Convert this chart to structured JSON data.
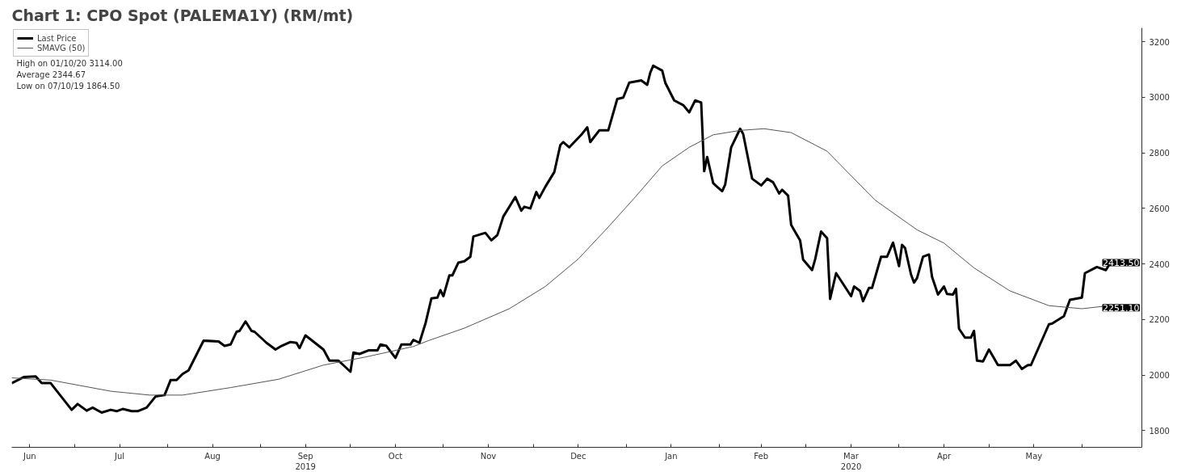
{
  "chart_data": {
    "type": "line",
    "title": "Chart 1: CPO Spot (PALEMA1Y) (RM/mt)",
    "xlim": [
      "2019-06-10",
      "2020-06-21"
    ],
    "ylim": [
      1740,
      3250
    ],
    "yticks": [
      1800,
      2000,
      2200,
      2400,
      2600,
      2800,
      3000,
      3200
    ],
    "xticks": [
      {
        "value": "2019-06-16",
        "label": "Jun"
      },
      {
        "value": "2019-07-01",
        "label": null
      },
      {
        "value": "2019-07-16",
        "label": "Jul"
      },
      {
        "value": "2019-08-01",
        "label": null
      },
      {
        "value": "2019-08-16",
        "label": "Aug"
      },
      {
        "value": "2019-09-01",
        "label": null
      },
      {
        "value": "2019-09-16",
        "label": "Sep\n2019"
      },
      {
        "value": "2019-10-01",
        "label": null
      },
      {
        "value": "2019-10-16",
        "label": "Oct"
      },
      {
        "value": "2019-11-01",
        "label": null
      },
      {
        "value": "2019-11-16",
        "label": "Nov"
      },
      {
        "value": "2019-12-01",
        "label": null
      },
      {
        "value": "2019-12-16",
        "label": "Dec"
      },
      {
        "value": "2020-01-01",
        "label": null
      },
      {
        "value": "2020-01-16",
        "label": "Jan"
      },
      {
        "value": "2020-02-01",
        "label": null
      },
      {
        "value": "2020-02-15",
        "label": "Feb"
      },
      {
        "value": "2020-03-01",
        "label": null
      },
      {
        "value": "2020-03-16",
        "label": "Mar\n2020"
      },
      {
        "value": "2020-04-01",
        "label": null
      },
      {
        "value": "2020-04-16",
        "label": "Apr"
      },
      {
        "value": "2020-05-01",
        "label": null
      },
      {
        "value": "2020-05-16",
        "label": "May"
      },
      {
        "value": "2020-06-01",
        "label": null
      }
    ],
    "grid": false,
    "legend": "top left",
    "line_style": "solid",
    "annotations": [
      "High on 01/10/20 3114.00",
      "Average 2344.67",
      "Low on 07/10/19 1864.50"
    ],
    "series": [
      {
        "name": "Last Price",
        "color": "#000000",
        "x": [
          "2019-06-10",
          "2019-06-14",
          "2019-06-18",
          "2019-06-20",
          "2019-06-23",
          "2019-06-30",
          "2019-07-02",
          "2019-07-05",
          "2019-07-07",
          "2019-07-10",
          "2019-07-13",
          "2019-07-15",
          "2019-07-17",
          "2019-07-20",
          "2019-07-22",
          "2019-07-25",
          "2019-07-28",
          "2019-07-31",
          "2019-08-02",
          "2019-08-04",
          "2019-08-06",
          "2019-08-08",
          "2019-08-13",
          "2019-08-18",
          "2019-08-20",
          "2019-08-22",
          "2019-08-24",
          "2019-08-25",
          "2019-08-27",
          "2019-08-29",
          "2019-08-30",
          "2019-09-03",
          "2019-09-06",
          "2019-09-08",
          "2019-09-11",
          "2019-09-13",
          "2019-09-14",
          "2019-09-16",
          "2019-09-22",
          "2019-09-24",
          "2019-09-27",
          "2019-10-01",
          "2019-10-02",
          "2019-10-04",
          "2019-10-07",
          "2019-10-10",
          "2019-10-11",
          "2019-10-13",
          "2019-10-16",
          "2019-10-18",
          "2019-10-21",
          "2019-10-22",
          "2019-10-24",
          "2019-10-26",
          "2019-10-28",
          "2019-10-30",
          "2019-10-31",
          "2019-11-01",
          "2019-11-03",
          "2019-11-04",
          "2019-11-06",
          "2019-11-08",
          "2019-11-10",
          "2019-11-11",
          "2019-11-15",
          "2019-11-17",
          "2019-11-19",
          "2019-11-21",
          "2019-11-25",
          "2019-11-27",
          "2019-11-28",
          "2019-11-30",
          "2019-12-02",
          "2019-12-03",
          "2019-12-05",
          "2019-12-08",
          "2019-12-10",
          "2019-12-11",
          "2019-12-13",
          "2019-12-17",
          "2019-12-19",
          "2019-12-20",
          "2019-12-23",
          "2019-12-26",
          "2019-12-29",
          "2019-12-31",
          "2020-01-02",
          "2020-01-06",
          "2020-01-08",
          "2020-01-09",
          "2020-01-10",
          "2020-01-13",
          "2020-01-14",
          "2020-01-17",
          "2020-01-20",
          "2020-01-22",
          "2020-01-24",
          "2020-01-26",
          "2020-01-27",
          "2020-01-28",
          "2020-01-30",
          "2020-01-31",
          "2020-02-02",
          "2020-02-03",
          "2020-02-05",
          "2020-02-08",
          "2020-02-09",
          "2020-02-12",
          "2020-02-15",
          "2020-02-17",
          "2020-02-19",
          "2020-02-21",
          "2020-02-22",
          "2020-02-24",
          "2020-02-25",
          "2020-02-28",
          "2020-02-29",
          "2020-03-03",
          "2020-03-04",
          "2020-03-06",
          "2020-03-08",
          "2020-03-09",
          "2020-03-11",
          "2020-03-16",
          "2020-03-17",
          "2020-03-19",
          "2020-03-20",
          "2020-03-22",
          "2020-03-23",
          "2020-03-26",
          "2020-03-28",
          "2020-03-30",
          "2020-04-01",
          "2020-04-02",
          "2020-04-03",
          "2020-04-05",
          "2020-04-06",
          "2020-04-07",
          "2020-04-09",
          "2020-04-11",
          "2020-04-12",
          "2020-04-14",
          "2020-04-16",
          "2020-04-17",
          "2020-04-19",
          "2020-04-20",
          "2020-04-21",
          "2020-04-23",
          "2020-04-25",
          "2020-04-26",
          "2020-04-27",
          "2020-04-29",
          "2020-05-01",
          "2020-05-04",
          "2020-05-08",
          "2020-05-10",
          "2020-05-12",
          "2020-05-14",
          "2020-05-15",
          "2020-05-21",
          "2020-05-22",
          "2020-05-26",
          "2020-05-28",
          "2020-06-01",
          "2020-06-02",
          "2020-06-06",
          "2020-06-09",
          "2020-06-11"
        ],
        "values": [
          1971,
          1993,
          1995,
          1971,
          1971,
          1875,
          1896,
          1872,
          1883,
          1865,
          1875,
          1870,
          1878,
          1870,
          1870,
          1883,
          1923,
          1928,
          1982,
          1982,
          2004,
          2017,
          2124,
          2121,
          2105,
          2110,
          2156,
          2159,
          2193,
          2159,
          2156,
          2116,
          2092,
          2105,
          2119,
          2116,
          2097,
          2143,
          2092,
          2052,
          2052,
          2012,
          2081,
          2076,
          2089,
          2089,
          2110,
          2105,
          2062,
          2110,
          2110,
          2127,
          2116,
          2185,
          2276,
          2279,
          2306,
          2284,
          2359,
          2359,
          2405,
          2410,
          2426,
          2499,
          2512,
          2485,
          2504,
          2571,
          2641,
          2592,
          2606,
          2600,
          2659,
          2638,
          2678,
          2731,
          2828,
          2839,
          2820,
          2865,
          2892,
          2839,
          2881,
          2881,
          2994,
          2999,
          3053,
          3061,
          3045,
          3088,
          3114,
          3096,
          3053,
          2989,
          2972,
          2946,
          2989,
          2981,
          2734,
          2785,
          2691,
          2681,
          2662,
          2686,
          2820,
          2887,
          2868,
          2707,
          2683,
          2707,
          2694,
          2654,
          2667,
          2646,
          2541,
          2485,
          2416,
          2378,
          2416,
          2517,
          2493,
          2274,
          2367,
          2284,
          2319,
          2303,
          2266,
          2314,
          2314,
          2426,
          2426,
          2477,
          2392,
          2469,
          2458,
          2362,
          2333,
          2349,
          2426,
          2434,
          2354,
          2290,
          2319,
          2292,
          2290,
          2311,
          2167,
          2135,
          2135,
          2159,
          2052,
          2049,
          2092,
          2036,
          2036,
          2052,
          2022,
          2036,
          2036,
          2183,
          2185,
          2212,
          2271,
          2279,
          2367,
          2389,
          2378,
          2413.5
        ],
        "value_labels": [
          null,
          null,
          null,
          null,
          null,
          null,
          null,
          null,
          null,
          null,
          null,
          null,
          null,
          null,
          null,
          null,
          null,
          null,
          null,
          null,
          null,
          null,
          null,
          null,
          null,
          null,
          null,
          null,
          null,
          null,
          null,
          null,
          null,
          null,
          null,
          null,
          null,
          null,
          null,
          null,
          null,
          null,
          null,
          null,
          null,
          null,
          null,
          null,
          null,
          null,
          null,
          null,
          null,
          null,
          null,
          null,
          null,
          null,
          null,
          null,
          null,
          null,
          null,
          null,
          null,
          null,
          null,
          null,
          null,
          null,
          null,
          null,
          null,
          null,
          null,
          null,
          null,
          null,
          null,
          null,
          null,
          null,
          null,
          null,
          null,
          null,
          null,
          null,
          null,
          null,
          null,
          null,
          null,
          null,
          null,
          null,
          null,
          null,
          null,
          null,
          null,
          null,
          null,
          null,
          null,
          null,
          null,
          null,
          null,
          null,
          null,
          null,
          null,
          null,
          null,
          null,
          null,
          null,
          null,
          null,
          null,
          null,
          null,
          null,
          null,
          null,
          null,
          null,
          null,
          null,
          null,
          null,
          null,
          null,
          null,
          null,
          null,
          null,
          null,
          null,
          null,
          null,
          null,
          null,
          null,
          null,
          null,
          null,
          null,
          null,
          null,
          null,
          null,
          null,
          null,
          null,
          null,
          null,
          null,
          null,
          null,
          null,
          null,
          null,
          null,
          null,
          null,
          "2413.50"
        ]
      },
      {
        "name": "SMAVG (50)",
        "color": "#555555",
        "x": [
          "2019-06-10",
          "2019-06-23",
          "2019-07-13",
          "2019-07-26",
          "2019-08-06",
          "2019-08-22",
          "2019-09-07",
          "2019-09-22",
          "2019-10-06",
          "2019-10-22",
          "2019-10-27",
          "2019-11-08",
          "2019-11-23",
          "2019-12-05",
          "2019-12-16",
          "2019-12-26",
          "2020-01-04",
          "2020-01-13",
          "2020-01-22",
          "2020-01-30",
          "2020-02-08",
          "2020-02-16",
          "2020-02-25",
          "2020-03-08",
          "2020-03-24",
          "2020-04-07",
          "2020-04-16",
          "2020-04-26",
          "2020-05-08",
          "2020-05-21",
          "2020-06-01",
          "2020-06-06",
          "2020-06-11"
        ],
        "values": [
          1990,
          1982,
          1942,
          1928,
          1928,
          1955,
          1985,
          2036,
          2065,
          2103,
          2124,
          2169,
          2239,
          2319,
          2418,
          2533,
          2641,
          2753,
          2820,
          2865,
          2881,
          2887,
          2873,
          2806,
          2630,
          2523,
          2475,
          2386,
          2303,
          2250,
          2239,
          2245,
          2251.1
        ],
        "value_labels": [
          null,
          null,
          null,
          null,
          null,
          null,
          null,
          null,
          null,
          null,
          null,
          null,
          null,
          null,
          null,
          null,
          null,
          null,
          null,
          null,
          null,
          null,
          null,
          null,
          null,
          null,
          null,
          null,
          null,
          null,
          null,
          null,
          "2251.10"
        ]
      }
    ]
  }
}
